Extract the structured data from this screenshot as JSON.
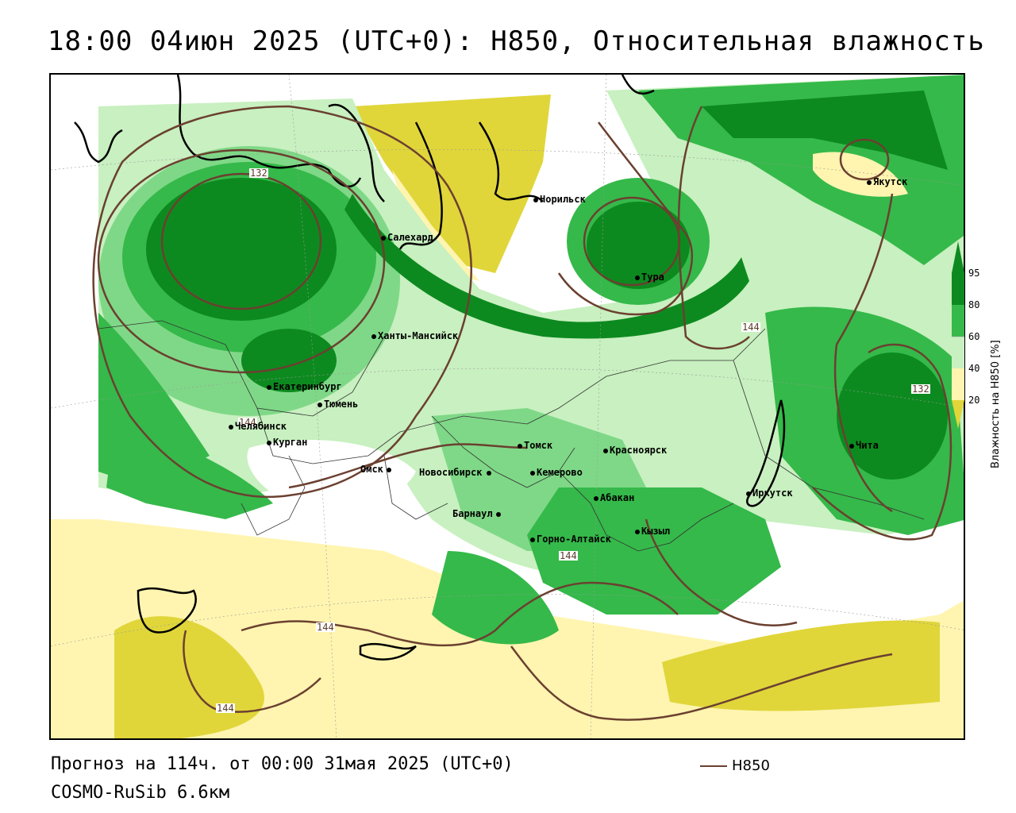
{
  "header": {
    "title": "18:00 04июн 2025 (UTC+0): H850, Относительная влажность"
  },
  "legend": {
    "label": "Влажность на H850 [%]",
    "ticks": [
      "95",
      "80",
      "60",
      "40",
      "20"
    ],
    "colors": {
      "very_humid": "#0d8a1f",
      "humid": "#35b94a",
      "moist": "#7fd887",
      "light_moist": "#c8f0c0",
      "neutral": "#ffffff",
      "dry": "#fff5b0",
      "very_dry": "#e0d63a"
    }
  },
  "contour_labels": [
    "132",
    "144",
    "144",
    "144",
    "144",
    "132",
    "144"
  ],
  "cities": [
    {
      "name": "Норильск"
    },
    {
      "name": "Якутск"
    },
    {
      "name": "Салехард"
    },
    {
      "name": "Тура"
    },
    {
      "name": "Ханты-Мансийск"
    },
    {
      "name": "Екатеринбург"
    },
    {
      "name": "Тюмень"
    },
    {
      "name": "Челябинск"
    },
    {
      "name": "Курган"
    },
    {
      "name": "Омск"
    },
    {
      "name": "Новосибирск"
    },
    {
      "name": "Томск"
    },
    {
      "name": "Кемерово"
    },
    {
      "name": "Красноярск"
    },
    {
      "name": "Барнаул"
    },
    {
      "name": "Абакан"
    },
    {
      "name": "Горно-Алтайск"
    },
    {
      "name": "Кызыл"
    },
    {
      "name": "Иркутск"
    },
    {
      "name": "Чита"
    }
  ],
  "footer": {
    "forecast": "Прогноз на 114ч. от 00:00 31мая 2025 (UTC+0)",
    "model": "COSMO-RuSib 6.6км",
    "series_name": "H850"
  }
}
